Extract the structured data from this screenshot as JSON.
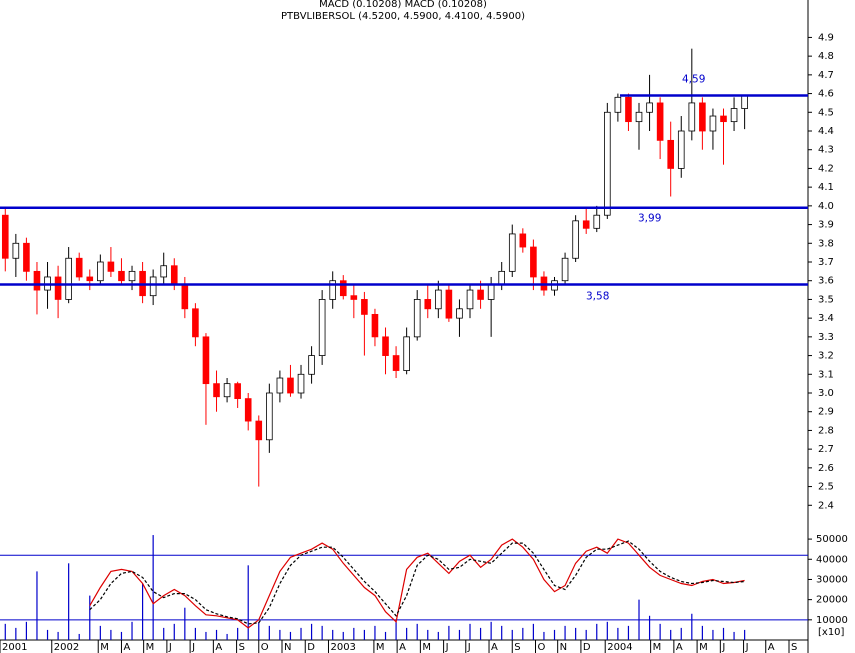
{
  "chart_data": [
    {
      "type": "candlestick",
      "header": "MACD (0.10208) MACD (0.10208)",
      "title": "PTBVLIBERSOL (4.5200, 4.5900, 4.4100, 4.5900)",
      "open": [
        3.95,
        3.72,
        3.8,
        3.65,
        3.55,
        3.62,
        3.5,
        3.72,
        3.62,
        3.6,
        3.7,
        3.65,
        3.6,
        3.65,
        3.52,
        3.62,
        3.68,
        3.58,
        3.45,
        3.3,
        3.05,
        2.98,
        3.05,
        2.97,
        2.85,
        2.75,
        3.0,
        3.08,
        3.0,
        3.1,
        3.2,
        3.5,
        3.6,
        3.52,
        3.5,
        3.42,
        3.3,
        3.2,
        3.12,
        3.3,
        3.5,
        3.45,
        3.55,
        3.4,
        3.45,
        3.55,
        3.5,
        3.58,
        3.65,
        3.85,
        3.78,
        3.62,
        3.55,
        3.6,
        3.72,
        3.92,
        3.88,
        3.95,
        4.5,
        4.58,
        4.45,
        4.5,
        4.55,
        4.35,
        4.2,
        4.4,
        4.55,
        4.4,
        4.48,
        4.45,
        4.52
      ],
      "high": [
        3.99,
        3.85,
        3.83,
        3.7,
        3.7,
        3.68,
        3.78,
        3.75,
        3.66,
        3.74,
        3.78,
        3.72,
        3.68,
        3.7,
        3.66,
        3.75,
        3.72,
        3.62,
        3.48,
        3.32,
        3.12,
        3.08,
        3.06,
        3.0,
        2.88,
        3.05,
        3.12,
        3.15,
        3.15,
        3.25,
        3.55,
        3.65,
        3.63,
        3.58,
        3.54,
        3.45,
        3.35,
        3.25,
        3.35,
        3.55,
        3.58,
        3.6,
        3.58,
        3.5,
        3.58,
        3.6,
        3.62,
        3.7,
        3.9,
        3.88,
        3.82,
        3.65,
        3.62,
        3.75,
        3.95,
        3.99,
        4.0,
        4.55,
        4.6,
        4.6,
        4.55,
        4.7,
        4.58,
        4.45,
        4.48,
        4.84,
        4.58,
        4.52,
        4.52,
        4.58,
        4.59
      ],
      "low": [
        3.65,
        3.62,
        3.6,
        3.42,
        3.45,
        3.4,
        3.48,
        3.6,
        3.55,
        3.58,
        3.62,
        3.58,
        3.55,
        3.48,
        3.47,
        3.58,
        3.55,
        3.4,
        3.25,
        2.83,
        2.9,
        2.95,
        2.92,
        2.8,
        2.5,
        2.68,
        2.95,
        2.98,
        2.97,
        3.05,
        3.15,
        3.45,
        3.5,
        3.4,
        3.2,
        3.25,
        3.1,
        3.08,
        3.1,
        3.28,
        3.4,
        3.4,
        3.38,
        3.3,
        3.4,
        3.45,
        3.3,
        3.55,
        3.62,
        3.75,
        3.55,
        3.52,
        3.52,
        3.58,
        3.7,
        3.85,
        3.86,
        3.93,
        4.45,
        4.4,
        4.3,
        4.4,
        4.25,
        4.05,
        4.15,
        4.35,
        4.3,
        4.3,
        4.22,
        4.4,
        4.41
      ],
      "close": [
        3.72,
        3.8,
        3.65,
        3.55,
        3.62,
        3.5,
        3.72,
        3.62,
        3.6,
        3.7,
        3.65,
        3.6,
        3.65,
        3.52,
        3.62,
        3.68,
        3.58,
        3.45,
        3.3,
        3.05,
        2.98,
        3.05,
        2.97,
        2.85,
        2.75,
        3.0,
        3.08,
        3.0,
        3.1,
        3.2,
        3.5,
        3.6,
        3.52,
        3.5,
        3.42,
        3.3,
        3.2,
        3.12,
        3.3,
        3.5,
        3.45,
        3.55,
        3.4,
        3.45,
        3.55,
        3.5,
        3.58,
        3.65,
        3.85,
        3.78,
        3.62,
        3.55,
        3.6,
        3.72,
        3.92,
        3.88,
        3.95,
        4.5,
        4.58,
        4.45,
        4.5,
        4.55,
        4.35,
        4.2,
        4.4,
        4.55,
        4.4,
        4.48,
        4.45,
        4.52,
        4.59
      ],
      "up_color": "#ffffff",
      "down_color": "#ff0000",
      "edge_color": "#000000",
      "levels": [
        {
          "value": 4.59,
          "label": "4,59"
        },
        {
          "value": 3.99,
          "label": "3,99"
        },
        {
          "value": 3.58,
          "label": "3,58"
        }
      ],
      "level_color": "#0000cc",
      "ylim": [
        2.3,
        5.1
      ],
      "yticks": [
        4.9,
        4.8,
        4.7,
        4.6,
        4.5,
        4.4,
        4.3,
        4.2,
        4.1,
        {
          "value": 4,
          "label": "4.0"
        },
        3.9,
        3.8,
        3.7,
        3.6,
        3.5,
        3.4,
        3.3,
        3.2,
        3.1,
        {
          "value": 3,
          "label": "3.0"
        },
        2.9,
        2.8,
        2.7,
        2.6,
        2.5,
        2.4
      ],
      "xlim": [
        -0.5,
        76
      ],
      "xticks": [
        {
          "value": -0.5,
          "label": "2001"
        },
        {
          "value": 4.4,
          "label": "2002"
        },
        {
          "value": 8.8,
          "label": "M"
        },
        {
          "value": 11.0,
          "label": "A"
        },
        {
          "value": 13.1,
          "label": "M"
        },
        {
          "value": 15.3,
          "label": "J"
        },
        {
          "value": 17.5,
          "label": "J"
        },
        {
          "value": 19.7,
          "label": "A"
        },
        {
          "value": 21.9,
          "label": "S"
        },
        {
          "value": 24.0,
          "label": "O"
        },
        {
          "value": 26.2,
          "label": "N"
        },
        {
          "value": 28.4,
          "label": "D"
        },
        {
          "value": 30.6,
          "label": "2003"
        },
        {
          "value": 34.9,
          "label": "M"
        },
        {
          "value": 37.1,
          "label": "A"
        },
        {
          "value": 39.3,
          "label": "M"
        },
        {
          "value": 41.5,
          "label": "J"
        },
        {
          "value": 43.6,
          "label": "J"
        },
        {
          "value": 45.8,
          "label": "A"
        },
        {
          "value": 48.0,
          "label": "S"
        },
        {
          "value": 50.2,
          "label": "O"
        },
        {
          "value": 52.3,
          "label": "N"
        },
        {
          "value": 54.5,
          "label": "D"
        },
        {
          "value": 56.8,
          "label": "2004"
        },
        {
          "value": 61.1,
          "label": "M"
        },
        {
          "value": 63.3,
          "label": "A"
        },
        {
          "value": 65.5,
          "label": "M"
        },
        {
          "value": 67.7,
          "label": "J"
        },
        {
          "value": 69.9,
          "label": "J"
        },
        {
          "value": 72.0,
          "label": "A"
        },
        {
          "value": 74.2,
          "label": "S"
        }
      ]
    },
    {
      "type": "volume-macd",
      "unit_label": "[x10]",
      "volume": {
        "color": "#0000cc",
        "values": [
          8000,
          6000,
          9000,
          34000,
          5000,
          4000,
          38000,
          3000,
          22000,
          7000,
          5000,
          4000,
          9000,
          28000,
          52000,
          6000,
          8000,
          16000,
          6000,
          4000,
          5000,
          3000,
          6000,
          37000,
          9000,
          7000,
          5000,
          4000,
          6000,
          8000,
          7000,
          5000,
          4000,
          6000,
          5000,
          7000,
          4000,
          9000,
          6000,
          8000,
          5000,
          4000,
          7000,
          5000,
          8000,
          6000,
          9000,
          7000,
          5000,
          6000,
          8000,
          4000,
          5000,
          7000,
          6000,
          5000,
          8000,
          9000,
          6000,
          7000,
          20000,
          12000,
          8000,
          5000,
          6000,
          13000,
          7000,
          5000,
          6000,
          4000,
          5000
        ]
      },
      "series": [
        {
          "color": "#dd0000",
          "dashed": false,
          "values": [
            null,
            null,
            null,
            null,
            null,
            null,
            null,
            null,
            17000,
            26000,
            34000,
            35000,
            34000,
            28000,
            18000,
            22000,
            25000,
            22000,
            17000,
            12500,
            12000,
            11000,
            10000,
            6000,
            10000,
            22000,
            34000,
            41000,
            43000,
            45000,
            48000,
            45000,
            38000,
            32000,
            26000,
            22000,
            14000,
            9000,
            35000,
            41000,
            43000,
            38000,
            33000,
            39000,
            42000,
            36000,
            40000,
            47000,
            50000,
            46000,
            40000,
            30000,
            24000,
            27000,
            38000,
            44000,
            46000,
            43000,
            50000,
            48000,
            42000,
            36000,
            32000,
            30000,
            28000,
            27000,
            29000,
            30000,
            28000,
            28500,
            29500
          ]
        },
        {
          "color": "#000000",
          "dashed": true,
          "values": [
            null,
            null,
            null,
            null,
            null,
            null,
            null,
            null,
            15000,
            20000,
            28000,
            33000,
            34000,
            31000,
            24000,
            21000,
            23000,
            23000,
            20000,
            15000,
            13000,
            11500,
            10500,
            8000,
            8500,
            16000,
            28000,
            37000,
            42000,
            44000,
            46000,
            46000,
            41000,
            35000,
            29000,
            24000,
            18000,
            12000,
            22000,
            37000,
            42000,
            40000,
            35000,
            36000,
            40000,
            39000,
            38000,
            43000,
            48000,
            48000,
            43000,
            35000,
            27000,
            25000,
            32000,
            41000,
            45000,
            45000,
            47000,
            49000,
            45000,
            39000,
            34000,
            31000,
            29000,
            28000,
            28500,
            29500,
            29000,
            28500,
            29000
          ]
        }
      ],
      "levels": [
        42000,
        10000
      ],
      "level_color": "#0000cc",
      "ylim": [
        0,
        55000
      ],
      "yticks": [
        50000,
        40000,
        30000,
        20000,
        10000
      ]
    }
  ]
}
